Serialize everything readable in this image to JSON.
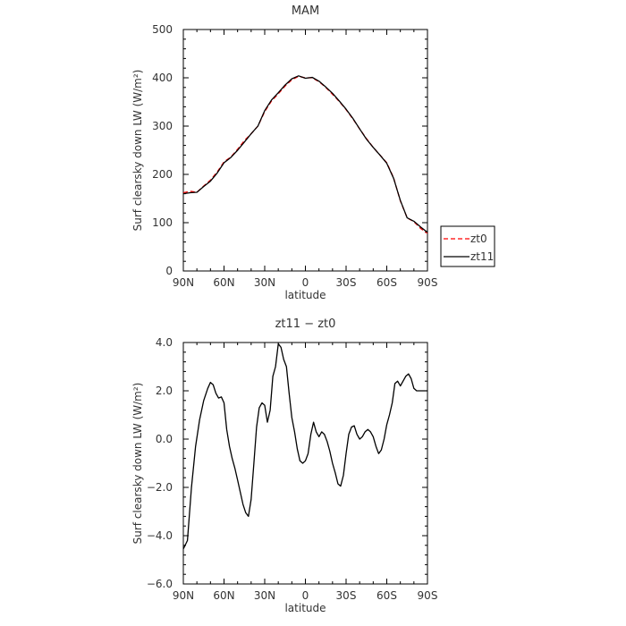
{
  "chart_data": [
    {
      "type": "line",
      "title": "MAM",
      "xlabel": "latitude",
      "ylabel": "Surf clearsky down LW (W/m²)",
      "xlim": [
        90,
        -90
      ],
      "ylim": [
        0,
        500
      ],
      "x_tick_values": [
        90,
        60,
        30,
        0,
        -30,
        -60,
        -90
      ],
      "x_tick_labels": [
        "90N",
        "60N",
        "30N",
        "0",
        "30S",
        "60S",
        "90S"
      ],
      "y_tick_values": [
        0,
        100,
        200,
        300,
        400,
        500
      ],
      "y_tick_labels": [
        "0",
        "100",
        "200",
        "300",
        "400",
        "500"
      ],
      "legend": "right-bottom",
      "series": [
        {
          "name": "zt0",
          "color": "#ff0000",
          "dash": true,
          "x": [
            90,
            85,
            80,
            75,
            70,
            65,
            60,
            55,
            50,
            45,
            40,
            35,
            30,
            25,
            20,
            15,
            10,
            5,
            0,
            -5,
            -10,
            -15,
            -20,
            -25,
            -30,
            -35,
            -40,
            -45,
            -50,
            -55,
            -60,
            -65,
            -70,
            -75,
            -80,
            -85,
            -90
          ],
          "y": [
            162,
            165,
            163,
            176,
            188,
            205,
            226,
            236,
            252,
            270,
            284,
            300,
            330,
            352,
            367,
            383,
            396,
            403,
            400,
            400,
            392,
            380,
            366,
            351,
            334,
            315,
            294,
            274,
            256,
            240,
            224,
            193,
            145,
            110,
            102,
            88,
            78
          ]
        },
        {
          "name": "zt11",
          "color": "#000000",
          "dash": false,
          "x": [
            90,
            85,
            80,
            75,
            70,
            65,
            60,
            55,
            50,
            45,
            40,
            35,
            30,
            25,
            20,
            15,
            10,
            5,
            0,
            -5,
            -10,
            -15,
            -20,
            -25,
            -30,
            -35,
            -40,
            -45,
            -50,
            -55,
            -60,
            -65,
            -70,
            -75,
            -80,
            -85,
            -90
          ],
          "y": [
            160,
            162,
            163,
            175,
            186,
            203,
            224,
            235,
            250,
            267,
            284,
            300,
            332,
            354,
            369,
            385,
            398,
            404,
            399,
            401,
            393,
            381,
            368,
            352,
            335,
            316,
            294,
            273,
            256,
            240,
            223,
            192,
            146,
            110,
            103,
            91,
            80
          ]
        }
      ]
    },
    {
      "type": "line",
      "title": "zt11 − zt0",
      "xlabel": "latitude",
      "ylabel": "Surf clearsky down LW (W/m²)",
      "xlim": [
        90,
        -90
      ],
      "ylim": [
        -6.0,
        4.0
      ],
      "x_tick_values": [
        90,
        60,
        30,
        0,
        -30,
        -60,
        -90
      ],
      "x_tick_labels": [
        "90N",
        "60N",
        "30N",
        "0",
        "30S",
        "60S",
        "90S"
      ],
      "y_tick_values": [
        -6,
        -4,
        -2,
        0,
        2,
        4
      ],
      "y_tick_labels": [
        "−6.0",
        "−4.0",
        "−2.0",
        "0.0",
        "2.0",
        "4.0"
      ],
      "series": [
        {
          "name": "zt11 − zt0",
          "color": "#000000",
          "dash": false,
          "x": [
            90,
            87,
            84,
            81,
            78,
            75,
            72,
            70,
            68,
            66,
            64,
            62,
            60,
            58,
            56,
            54,
            52,
            50,
            48,
            46,
            44,
            42,
            40,
            38,
            36,
            34,
            32,
            30,
            28,
            26,
            24,
            22,
            20,
            18,
            16,
            14,
            12,
            10,
            8,
            6,
            4,
            2,
            0,
            -2,
            -4,
            -6,
            -8,
            -10,
            -12,
            -14,
            -16,
            -18,
            -20,
            -22,
            -24,
            -26,
            -28,
            -30,
            -32,
            -34,
            -36,
            -38,
            -40,
            -42,
            -44,
            -46,
            -48,
            -50,
            -52,
            -54,
            -56,
            -58,
            -60,
            -62,
            -64,
            -66,
            -68,
            -70,
            -72,
            -74,
            -76,
            -78,
            -80,
            -82,
            -84,
            -86,
            -88,
            -90
          ],
          "y": [
            -4.55,
            -4.2,
            -2.0,
            -0.3,
            0.8,
            1.6,
            2.1,
            2.35,
            2.25,
            1.9,
            1.7,
            1.75,
            1.5,
            0.4,
            -0.3,
            -0.8,
            -1.2,
            -1.7,
            -2.2,
            -2.7,
            -3.05,
            -3.2,
            -2.5,
            -1.0,
            0.5,
            1.3,
            1.5,
            1.4,
            0.7,
            1.2,
            2.6,
            3.0,
            3.95,
            3.8,
            3.3,
            3.0,
            1.9,
            0.9,
            0.3,
            -0.4,
            -0.9,
            -1.0,
            -0.9,
            -0.6,
            0.2,
            0.7,
            0.3,
            0.1,
            0.3,
            0.2,
            -0.1,
            -0.5,
            -1.0,
            -1.4,
            -1.85,
            -1.95,
            -1.5,
            -0.6,
            0.2,
            0.5,
            0.55,
            0.2,
            0.0,
            0.1,
            0.3,
            0.4,
            0.3,
            0.1,
            -0.3,
            -0.6,
            -0.45,
            0.0,
            0.6,
            1.0,
            1.5,
            2.3,
            2.4,
            2.2,
            2.4,
            2.6,
            2.7,
            2.5,
            2.1,
            2.0,
            2.0,
            2.0,
            2.0,
            2.0
          ]
        }
      ]
    }
  ]
}
